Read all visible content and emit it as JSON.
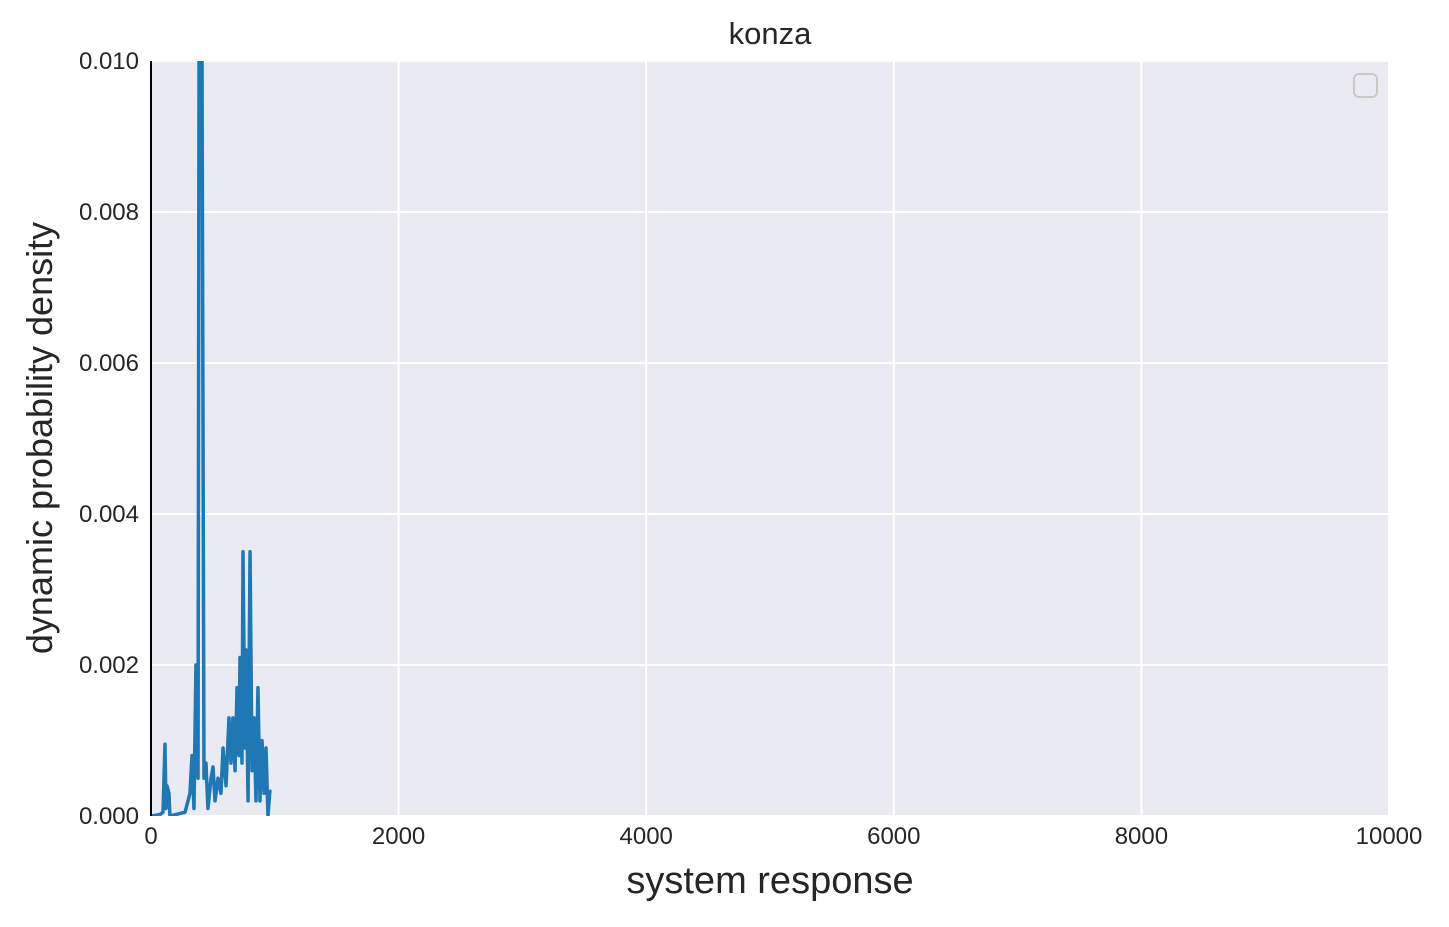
{
  "chart_data": {
    "type": "line",
    "title": "konza",
    "xlabel": "system response",
    "ylabel": "dynamic probability density",
    "x": [
      0,
      73,
      97,
      113,
      121,
      129,
      145,
      153,
      275,
      315,
      331,
      347,
      363,
      380,
      388,
      412,
      428,
      444,
      460,
      485,
      501,
      517,
      541,
      565,
      582,
      606,
      630,
      646,
      662,
      679,
      695,
      711,
      719,
      735,
      743,
      759,
      767,
      784,
      800,
      816,
      832,
      848,
      864,
      880,
      897,
      913,
      929,
      945,
      961
    ],
    "series": [
      {
        "color": "#1f77b4",
        "values": [
          0,
          2e-05,
          5e-05,
          0.00095,
          0.0001,
          0.0004,
          0.0003,
          0,
          5e-05,
          0.0003,
          0.0008,
          0.0001,
          0.002,
          0.0005,
          0.01,
          0.01,
          0.0005,
          0.0007,
          0.0001,
          0.0005,
          0.00065,
          0.0002,
          0.0005,
          0.0003,
          0.0009,
          0.0004,
          0.0013,
          0.0007,
          0.0013,
          0.0006,
          0.0017,
          0.0008,
          0.0021,
          0.0007,
          0.0035,
          0.0009,
          0.0022,
          0.0002,
          0.0035,
          0.0006,
          0.0013,
          0.0002,
          0.0017,
          0.0002,
          0.001,
          0.0003,
          0.0009,
          0,
          0.00035
        ]
      }
    ],
    "xlim": [
      0,
      10000
    ],
    "xticks": [
      0,
      2000,
      4000,
      6000,
      8000,
      10000
    ],
    "ylim": [
      0,
      0.01
    ],
    "yticks": [
      {
        "value": 0,
        "label": "0.000"
      },
      0.002,
      0.004,
      0.006,
      0.008,
      {
        "value": 0.01,
        "label": "0.010"
      }
    ],
    "grid": true
  }
}
